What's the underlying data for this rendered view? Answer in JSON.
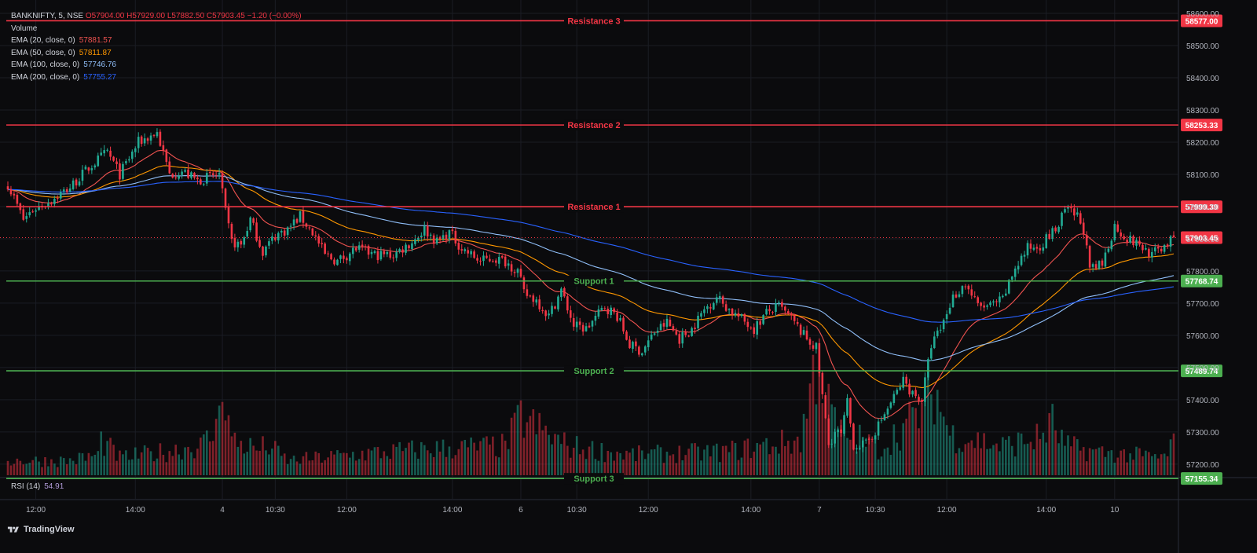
{
  "legend": {
    "symbol": "BANKNIFTY, 5, NSE",
    "open": "O57904.00",
    "high": "H57929.00",
    "low": "L57882.50",
    "close": "C57903.45",
    "change": "−1.20 (−0.00%)",
    "volume_label": "Volume",
    "ema": [
      {
        "label": "EMA (20, close, 0)",
        "value": "57881.57",
        "color": "#f05350"
      },
      {
        "label": "EMA (50, close, 0)",
        "value": "57811.87",
        "color": "#ff9800"
      },
      {
        "label": "EMA (100, close, 0)",
        "value": "57746.76",
        "color": "#90bff9"
      },
      {
        "label": "EMA (200, close, 0)",
        "value": "57755.27",
        "color": "#2962ff"
      }
    ]
  },
  "rsi": {
    "label": "RSI (14)",
    "value": "54.91"
  },
  "brand": "TradingView",
  "colors": {
    "up": "#22ab94",
    "down": "#f23645",
    "resistance": "#f23645",
    "support": "#4caf50",
    "bg": "#0b0b0d"
  },
  "chart_data": {
    "type": "candlestick",
    "title": "BANKNIFTY, 5, NSE",
    "ylim": [
      57110,
      58605
    ],
    "y_ticks": [
      "58600.00",
      "58500.00",
      "58400.00",
      "58300.00",
      "58200.00",
      "58100.00",
      "58000.00",
      "57900.00",
      "57800.00",
      "57700.00",
      "57600.00",
      "57500.00",
      "57400.00",
      "57300.00",
      "57200.00"
    ],
    "y_tick_values": [
      58600,
      58500,
      58400,
      58300,
      58200,
      58100,
      58000,
      57900,
      57800,
      57700,
      57600,
      57500,
      57400,
      57300,
      57200
    ],
    "x_tick_labels": [
      "12:00",
      "14:00",
      "4",
      "10:30",
      "12:00",
      "14:00",
      "6",
      "10:30",
      "12:00",
      "14:00",
      "7",
      "10:30",
      "12:00",
      "14:00",
      "10"
    ],
    "x_tick_bars": [
      9,
      41,
      69,
      86,
      109,
      143,
      165,
      183,
      206,
      239,
      261,
      279,
      302,
      334,
      356
    ],
    "current_price": {
      "label": "57903.45",
      "value": 57903.45
    },
    "levels": [
      {
        "name": "Resistance 3",
        "value": 58577.0,
        "label": "58577.00",
        "kind": "resistance"
      },
      {
        "name": "Resistance 2",
        "value": 58253.33,
        "label": "58253.33",
        "kind": "resistance"
      },
      {
        "name": "Resistance 1",
        "value": 57999.39,
        "label": "57999.39",
        "kind": "resistance"
      },
      {
        "name": "Support 1",
        "value": 57768.74,
        "label": "57768.74",
        "kind": "support"
      },
      {
        "name": "Support 2",
        "value": 57489.74,
        "label": "57489.74",
        "kind": "support"
      },
      {
        "name": "Support 3",
        "value": 57155.34,
        "label": "57155.34",
        "kind": "support"
      }
    ],
    "close_anchors": [
      [
        0,
        58070
      ],
      [
        5,
        57960
      ],
      [
        8,
        57990
      ],
      [
        14,
        58020
      ],
      [
        20,
        58060
      ],
      [
        26,
        58120
      ],
      [
        32,
        58170
      ],
      [
        36,
        58100
      ],
      [
        42,
        58200
      ],
      [
        48,
        58230
      ],
      [
        52,
        58100
      ],
      [
        56,
        58110
      ],
      [
        61,
        58080
      ],
      [
        64,
        58090
      ],
      [
        68,
        58100
      ],
      [
        70,
        57980
      ],
      [
        72,
        57890
      ],
      [
        75,
        57880
      ],
      [
        78,
        57960
      ],
      [
        82,
        57860
      ],
      [
        86,
        57910
      ],
      [
        90,
        57930
      ],
      [
        94,
        57970
      ],
      [
        98,
        57920
      ],
      [
        102,
        57850
      ],
      [
        106,
        57830
      ],
      [
        112,
        57870
      ],
      [
        118,
        57850
      ],
      [
        124,
        57850
      ],
      [
        130,
        57890
      ],
      [
        134,
        57930
      ],
      [
        138,
        57890
      ],
      [
        142,
        57920
      ],
      [
        146,
        57870
      ],
      [
        152,
        57830
      ],
      [
        156,
        57840
      ],
      [
        160,
        57830
      ],
      [
        164,
        57800
      ],
      [
        166,
        57730
      ],
      [
        170,
        57710
      ],
      [
        174,
        57660
      ],
      [
        178,
        57740
      ],
      [
        182,
        57630
      ],
      [
        186,
        57620
      ],
      [
        192,
        57690
      ],
      [
        196,
        57660
      ],
      [
        200,
        57570
      ],
      [
        204,
        57550
      ],
      [
        208,
        57610
      ],
      [
        212,
        57640
      ],
      [
        216,
        57590
      ],
      [
        220,
        57620
      ],
      [
        224,
        57680
      ],
      [
        228,
        57720
      ],
      [
        232,
        57680
      ],
      [
        236,
        57650
      ],
      [
        240,
        57620
      ],
      [
        244,
        57670
      ],
      [
        248,
        57690
      ],
      [
        252,
        57650
      ],
      [
        256,
        57600
      ],
      [
        260,
        57560
      ],
      [
        262,
        57410
      ],
      [
        264,
        57260
      ],
      [
        266,
        57300
      ],
      [
        268,
        57290
      ],
      [
        270,
        57390
      ],
      [
        272,
        57260
      ],
      [
        276,
        57260
      ],
      [
        280,
        57320
      ],
      [
        284,
        57390
      ],
      [
        288,
        57460
      ],
      [
        291,
        57420
      ],
      [
        294,
        57400
      ],
      [
        297,
        57570
      ],
      [
        300,
        57620
      ],
      [
        304,
        57720
      ],
      [
        308,
        57760
      ],
      [
        312,
        57690
      ],
      [
        316,
        57690
      ],
      [
        320,
        57710
      ],
      [
        324,
        57810
      ],
      [
        328,
        57870
      ],
      [
        332,
        57880
      ],
      [
        336,
        57920
      ],
      [
        338,
        57940
      ],
      [
        340,
        57990
      ],
      [
        344,
        57970
      ],
      [
        346,
        57930
      ],
      [
        348,
        57800
      ],
      [
        352,
        57820
      ],
      [
        356,
        57940
      ],
      [
        360,
        57900
      ],
      [
        364,
        57880
      ],
      [
        368,
        57850
      ],
      [
        372,
        57880
      ],
      [
        375,
        57903
      ]
    ],
    "volume_anchors": [
      [
        0,
        0.05
      ],
      [
        20,
        0.05
      ],
      [
        29,
        0.07
      ],
      [
        30,
        0.12
      ],
      [
        36,
        0.06
      ],
      [
        50,
        0.08
      ],
      [
        60,
        0.1
      ],
      [
        62,
        0.1
      ],
      [
        67,
        0.15
      ],
      [
        69,
        0.4
      ],
      [
        70,
        0.25
      ],
      [
        72,
        0.12
      ],
      [
        80,
        0.09
      ],
      [
        84,
        0.1
      ],
      [
        90,
        0.05
      ],
      [
        110,
        0.07
      ],
      [
        135,
        0.09
      ],
      [
        160,
        0.1
      ],
      [
        165,
        0.2
      ],
      [
        172,
        0.15
      ],
      [
        180,
        0.1
      ],
      [
        200,
        0.07
      ],
      [
        230,
        0.08
      ],
      [
        255,
        0.12
      ],
      [
        261,
        0.45
      ],
      [
        263,
        0.25
      ],
      [
        268,
        0.15
      ],
      [
        275,
        0.12
      ],
      [
        280,
        0.09
      ],
      [
        292,
        0.2
      ],
      [
        298,
        0.3
      ],
      [
        303,
        0.14
      ],
      [
        312,
        0.12
      ],
      [
        320,
        0.1
      ],
      [
        332,
        0.13
      ],
      [
        336,
        0.18
      ],
      [
        340,
        0.1
      ],
      [
        350,
        0.08
      ],
      [
        372,
        0.06
      ],
      [
        375,
        0.12
      ]
    ]
  }
}
